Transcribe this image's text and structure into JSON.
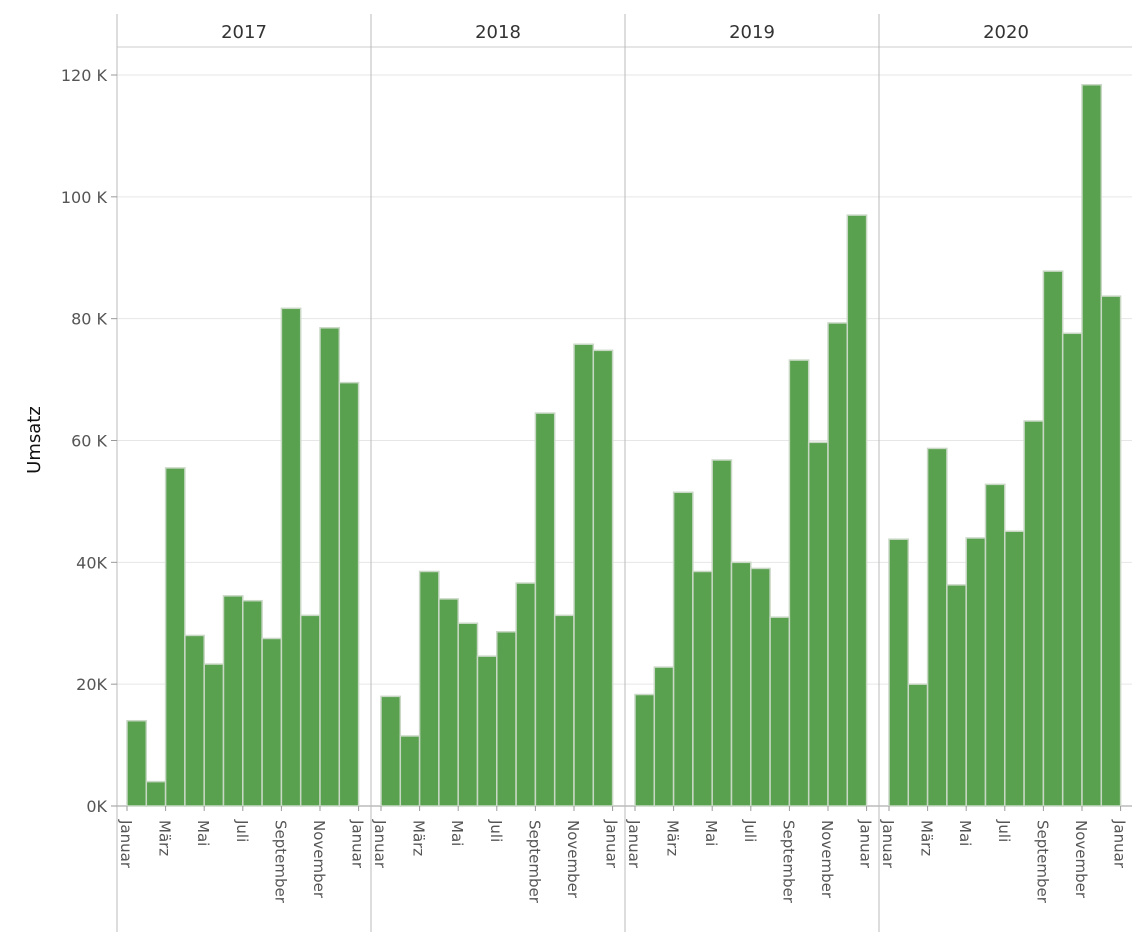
{
  "chart_data": {
    "type": "bar",
    "ylabel": "Umsatz",
    "ylim": [
      0,
      120000
    ],
    "grid": true,
    "y_ticks": [
      {
        "value": 0,
        "label": "0K"
      },
      {
        "value": 20000,
        "label": "20K"
      },
      {
        "value": 40000,
        "label": "40K"
      },
      {
        "value": 60000,
        "label": "60 K"
      },
      {
        "value": 80000,
        "label": "80 K"
      },
      {
        "value": 100000,
        "label": "100 K"
      },
      {
        "value": 120000,
        "label": "120 K"
      }
    ],
    "x_tick_labels": [
      "Januar",
      "März",
      "Mai",
      "Juli",
      "September",
      "November",
      "Januar"
    ],
    "colors": {
      "bar": "#59a14f",
      "bar_edge": "#c9d8c5"
    },
    "panels": [
      {
        "year": "2017",
        "values": [
          14000,
          4000,
          55500,
          28000,
          23300,
          34500,
          33700,
          27500,
          81700,
          31300,
          78500,
          69500
        ]
      },
      {
        "year": "2018",
        "values": [
          18000,
          11500,
          38500,
          34000,
          30000,
          24600,
          28600,
          36600,
          64500,
          31300,
          75800,
          74800
        ]
      },
      {
        "year": "2019",
        "values": [
          18300,
          22800,
          51500,
          38500,
          56800,
          40000,
          39000,
          31000,
          73200,
          59700,
          79300,
          97000
        ]
      },
      {
        "year": "2020",
        "values": [
          43800,
          20000,
          58700,
          36300,
          44000,
          52800,
          45100,
          63200,
          87800,
          77600,
          118400,
          83700
        ]
      }
    ]
  }
}
